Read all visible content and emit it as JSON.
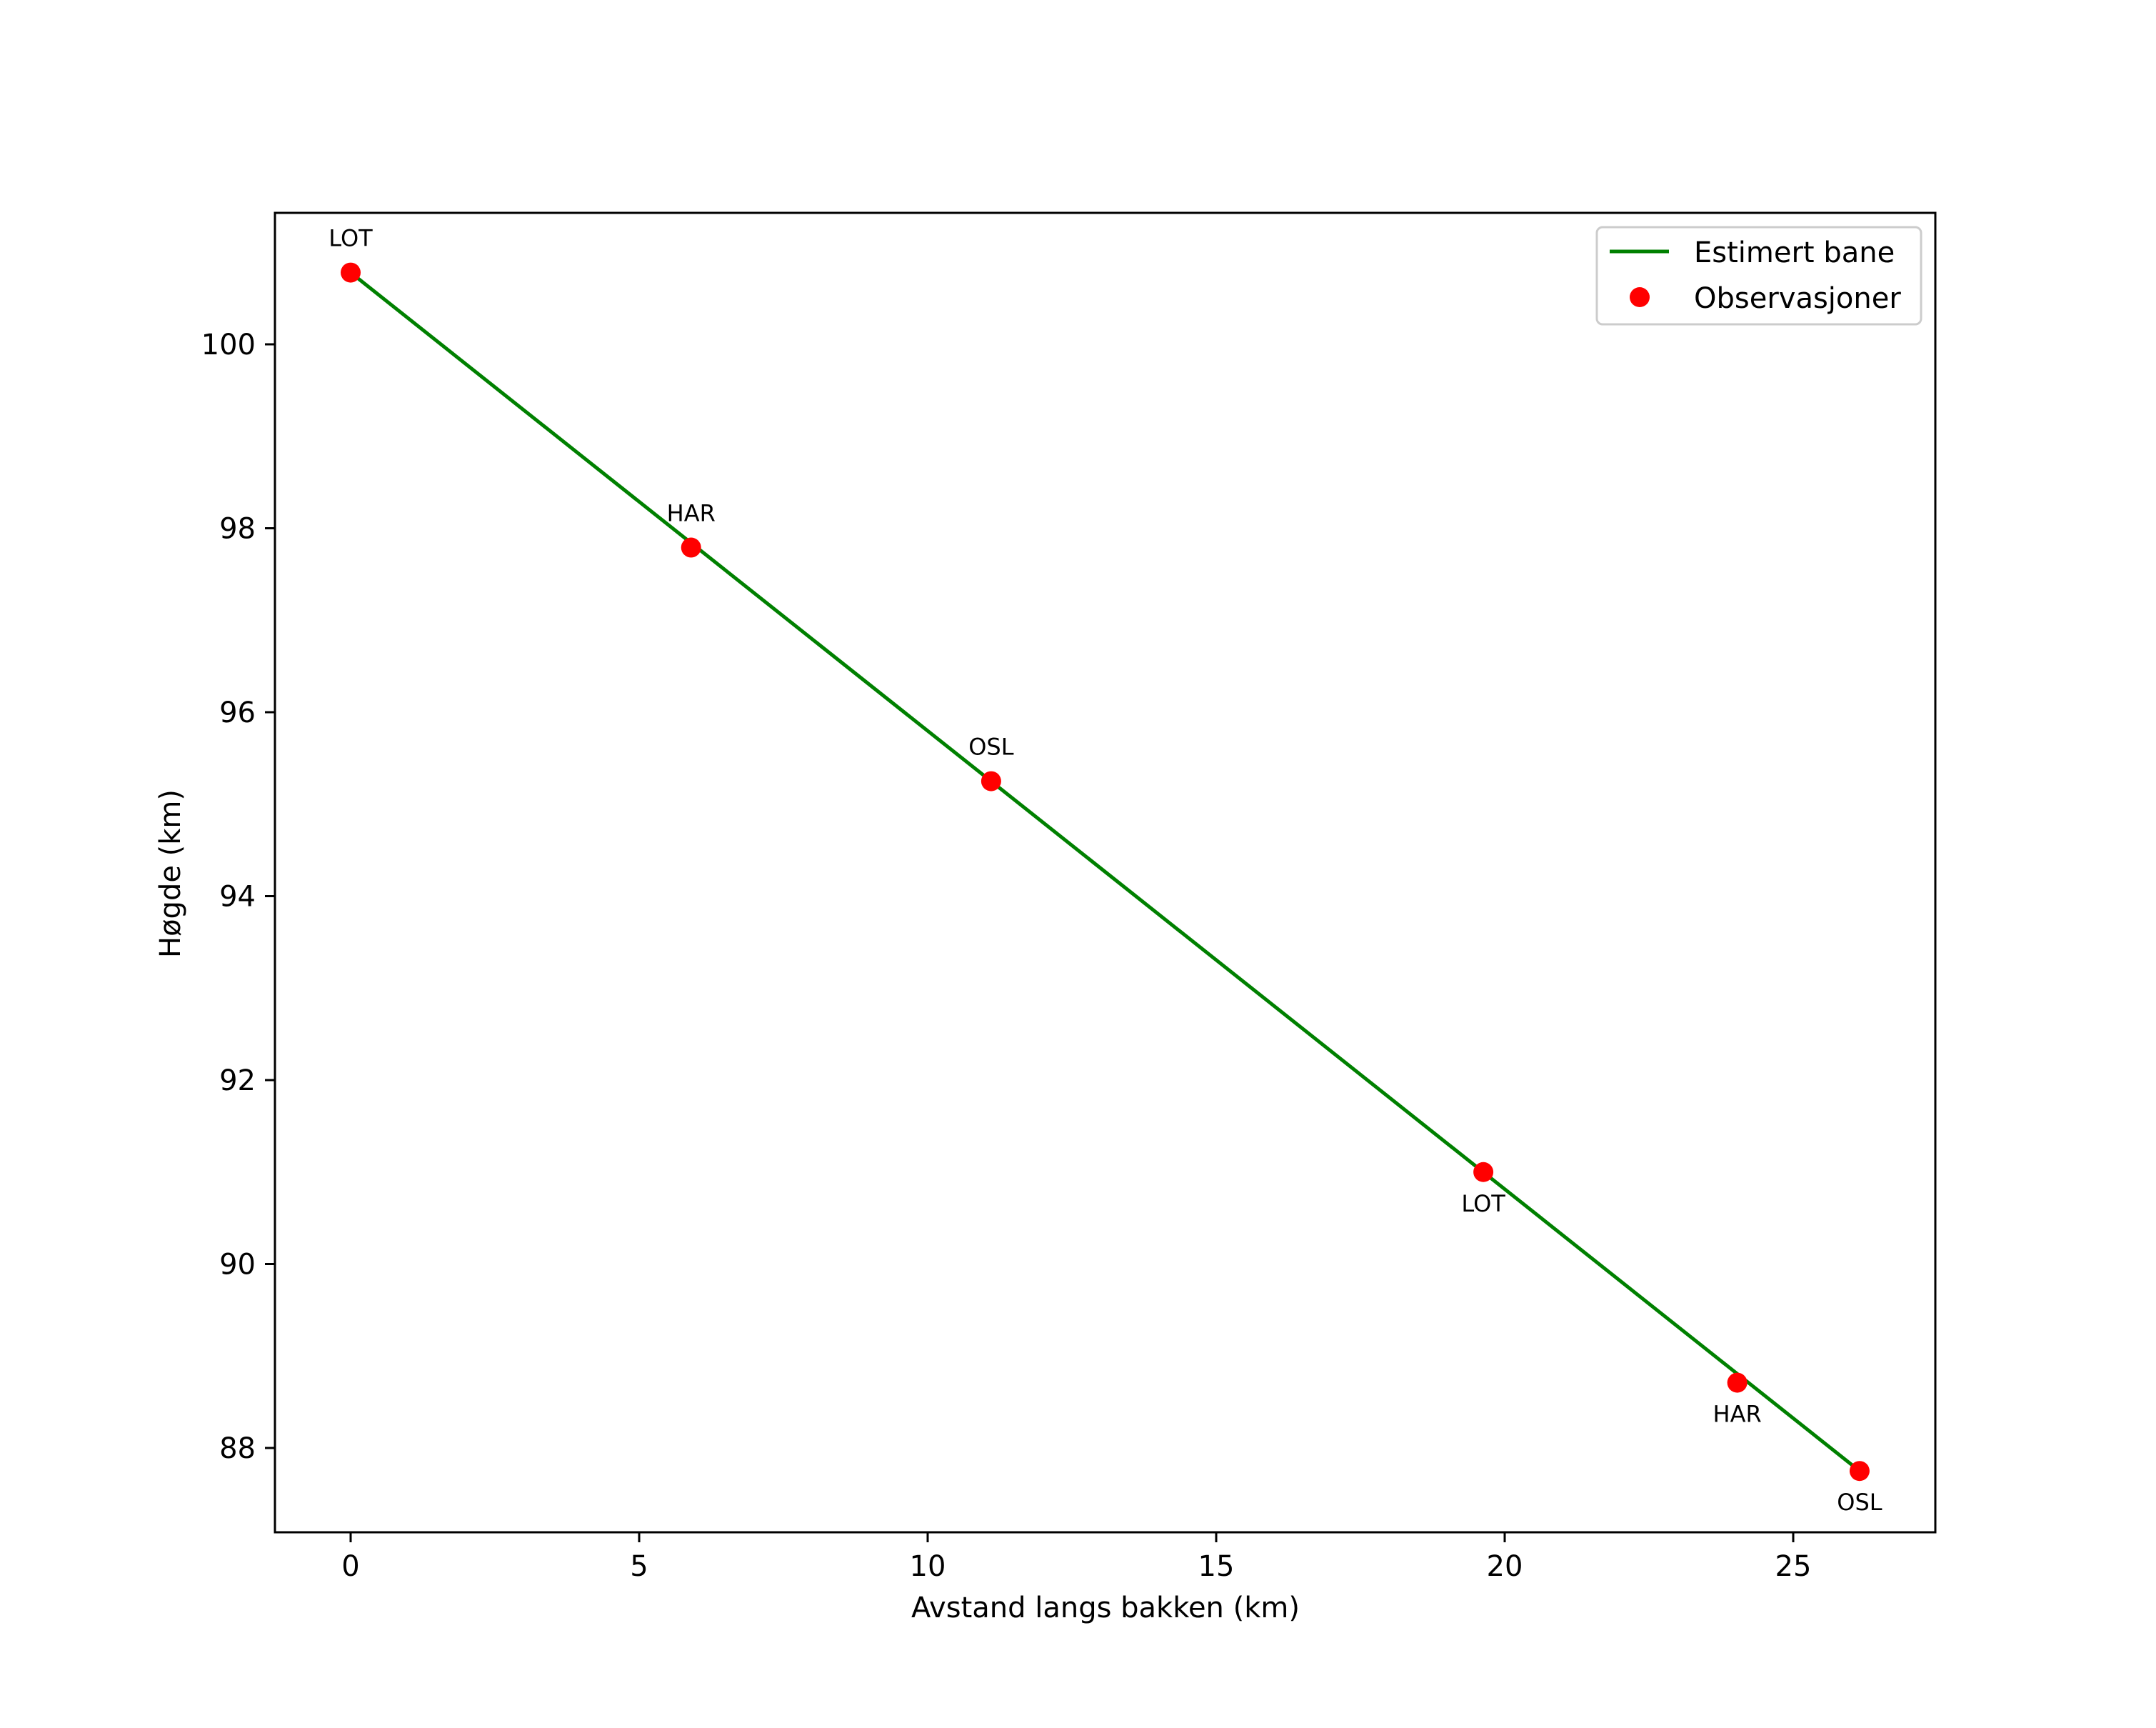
{
  "chart_data": {
    "type": "line",
    "title": "",
    "xlabel": "Avstand langs bakken (km)",
    "ylabel": "Høgde (km)",
    "xlim": [
      -1.31,
      27.46
    ],
    "ylim": [
      87.1,
      101.4
    ],
    "grid": false,
    "legend_position": "upper right",
    "x_ticks": [
      0,
      5,
      10,
      15,
      20,
      25
    ],
    "y_ticks": [
      88,
      90,
      92,
      94,
      96,
      98,
      100
    ],
    "series": [
      {
        "name": "Estimert bane",
        "type": "line",
        "color": "#008000",
        "x": [
          0.0,
          26.15
        ],
        "y": [
          100.78,
          87.75
        ]
      },
      {
        "name": "Observasjoner",
        "type": "scatter",
        "color": "#ff0000",
        "points": [
          {
            "x": 0.0,
            "y": 100.78,
            "label": "LOT",
            "label_pos": "above"
          },
          {
            "x": 5.9,
            "y": 97.79,
            "label": "HAR",
            "label_pos": "above"
          },
          {
            "x": 11.1,
            "y": 95.25,
            "label": "OSL",
            "label_pos": "above"
          },
          {
            "x": 19.63,
            "y": 91.0,
            "label": "LOT",
            "label_pos": "below"
          },
          {
            "x": 24.03,
            "y": 88.71,
            "label": "HAR",
            "label_pos": "below"
          },
          {
            "x": 26.15,
            "y": 87.75,
            "label": "OSL",
            "label_pos": "below"
          }
        ]
      }
    ]
  },
  "legend": {
    "items": [
      {
        "label": "Estimert bane",
        "marker": "line",
        "color": "#008000"
      },
      {
        "label": "Observasjoner",
        "marker": "dot",
        "color": "#ff0000"
      }
    ]
  },
  "axes": {
    "x_tick_labels": [
      "0",
      "5",
      "10",
      "15",
      "20",
      "25"
    ],
    "y_tick_labels": [
      "88",
      "90",
      "92",
      "94",
      "96",
      "98",
      "100"
    ]
  }
}
